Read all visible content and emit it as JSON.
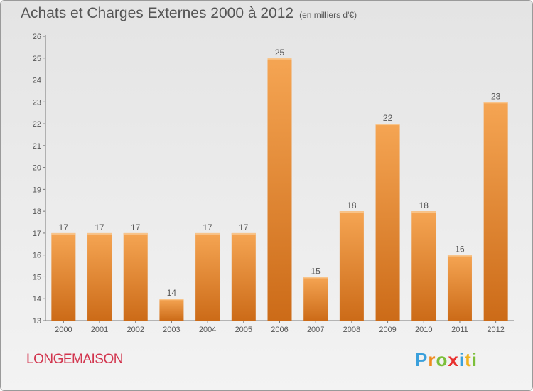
{
  "title": "Achats et Charges Externes 2000 à 2012",
  "unit_note": "(en milliers d'€)",
  "town": "LONGEMAISON",
  "logo": {
    "letters": [
      "P",
      "r",
      "o",
      "x",
      "i",
      "t",
      "i"
    ],
    "colors": [
      "#3aa0dc",
      "#f08a1e",
      "#7cbf3a",
      "#e8302e",
      "#3aa0dc",
      "#f0b21e",
      "#7cbf3a"
    ]
  },
  "colors": {
    "bar_top": "#f5a553",
    "bar_bottom": "#cc6b18",
    "text": "#555555",
    "town": "#d2354e"
  },
  "chart_data": {
    "type": "bar",
    "title": "Achats et Charges Externes 2000 à 2012",
    "subtitle": "(en milliers d'€)",
    "categories": [
      "2000",
      "2001",
      "2002",
      "2003",
      "2004",
      "2005",
      "2006",
      "2007",
      "2008",
      "2009",
      "2010",
      "2011",
      "2012"
    ],
    "values": [
      17,
      17,
      17,
      14,
      17,
      17,
      25,
      15,
      18,
      22,
      18,
      16,
      23
    ],
    "ylim": [
      13,
      26
    ],
    "yticks": [
      13,
      14,
      15,
      16,
      17,
      18,
      19,
      20,
      21,
      22,
      23,
      24,
      25,
      26
    ],
    "grid": false,
    "legend": "none"
  }
}
